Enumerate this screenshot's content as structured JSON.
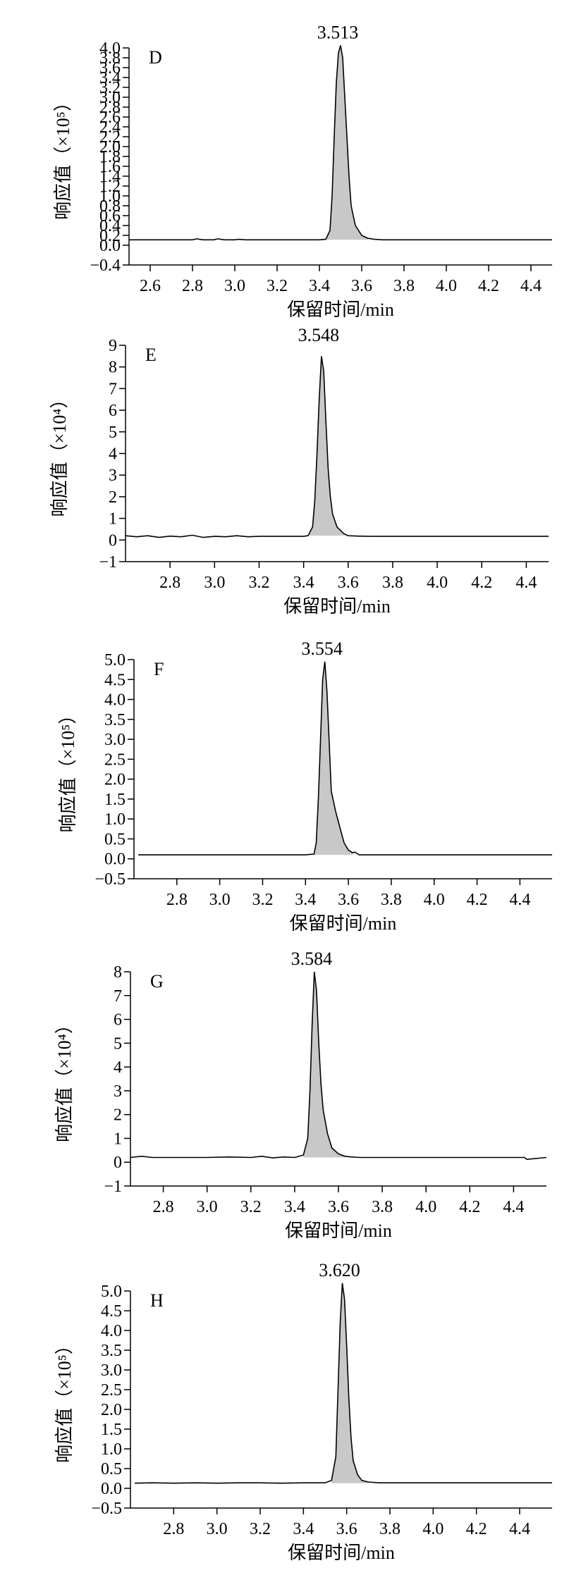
{
  "chart_data": [
    {
      "type": "line",
      "panel_label": "D",
      "peak_label": "3.513",
      "xlabel": "保留时间/min",
      "ylabel": "响应值（×10⁵）",
      "xlim": [
        2.5,
        4.5
      ],
      "ylim": [
        -0.4,
        4.0
      ],
      "xticks": [
        2.6,
        2.8,
        3.0,
        3.2,
        3.4,
        3.6,
        3.8,
        4.0,
        4.2,
        4.4
      ],
      "xtick_labels": [
        "2.6",
        "2.8",
        "3.0",
        "3.2",
        "3.4",
        "3.6",
        "3.8",
        "4.0",
        "4.2",
        "4.4"
      ],
      "yticks": [
        -0.4,
        0.0,
        0.2,
        0.4,
        0.6,
        0.8,
        1.0,
        1.2,
        1.4,
        1.6,
        1.8,
        2.0,
        2.2,
        2.4,
        2.6,
        2.8,
        3.0,
        3.2,
        3.4,
        3.6,
        3.8,
        4.0
      ],
      "ytick_labels": [
        "−0.4",
        "0.0",
        "0.2",
        "0.4",
        "0.6",
        "0.8",
        "1.0",
        "1.2",
        "1.4",
        "1.6",
        "1.8",
        "2.0",
        "2.2",
        "2.4",
        "2.6",
        "2.8",
        "3.0",
        "3.2",
        "3.4",
        "3.6",
        "3.8",
        "4.0"
      ],
      "series": [
        {
          "x": [
            2.5,
            2.6,
            2.7,
            2.8,
            2.82,
            2.85,
            2.9,
            2.92,
            2.95,
            3.0,
            3.02,
            3.05,
            3.1,
            3.2,
            3.3,
            3.4,
            3.43,
            3.45,
            3.46,
            3.47,
            3.48,
            3.49,
            3.5,
            3.51,
            3.52,
            3.53,
            3.54,
            3.55,
            3.57,
            3.6,
            3.63,
            3.66,
            3.7,
            3.8,
            4.0,
            4.2,
            4.4,
            4.5
          ],
          "y": [
            0.11,
            0.11,
            0.11,
            0.11,
            0.13,
            0.11,
            0.11,
            0.13,
            0.11,
            0.11,
            0.12,
            0.11,
            0.11,
            0.11,
            0.11,
            0.11,
            0.12,
            0.3,
            1.0,
            2.2,
            3.3,
            3.9,
            4.05,
            3.8,
            3.0,
            2.2,
            1.4,
            0.8,
            0.4,
            0.2,
            0.14,
            0.12,
            0.11,
            0.11,
            0.11,
            0.11,
            0.11,
            0.11
          ]
        }
      ]
    },
    {
      "type": "line",
      "panel_label": "E",
      "peak_label": "3.548",
      "xlabel": "保留时间/min",
      "ylabel": "响应值（×10⁴）",
      "xlim": [
        2.6,
        4.5
      ],
      "ylim": [
        -1,
        9
      ],
      "xticks": [
        2.8,
        3.0,
        3.2,
        3.4,
        3.6,
        3.8,
        4.0,
        4.2,
        4.4
      ],
      "xtick_labels": [
        "2.8",
        "3.0",
        "3.2",
        "3.4",
        "3.6",
        "3.8",
        "4.0",
        "4.2",
        "4.4"
      ],
      "yticks": [
        -1,
        0,
        1,
        2,
        3,
        4,
        5,
        6,
        7,
        8,
        9
      ],
      "ytick_labels": [
        "−1",
        "0",
        "1",
        "2",
        "3",
        "4",
        "5",
        "6",
        "7",
        "8",
        "9"
      ],
      "series": [
        {
          "x": [
            2.6,
            2.65,
            2.7,
            2.75,
            2.8,
            2.85,
            2.9,
            2.95,
            3.0,
            3.05,
            3.1,
            3.15,
            3.2,
            3.3,
            3.4,
            3.42,
            3.44,
            3.45,
            3.46,
            3.47,
            3.48,
            3.49,
            3.5,
            3.51,
            3.52,
            3.53,
            3.55,
            3.58,
            3.6,
            3.65,
            3.7,
            3.8,
            4.0,
            4.2,
            4.4,
            4.5
          ],
          "y": [
            0.2,
            0.15,
            0.2,
            0.12,
            0.18,
            0.15,
            0.22,
            0.12,
            0.17,
            0.15,
            0.2,
            0.15,
            0.17,
            0.17,
            0.17,
            0.2,
            0.6,
            1.8,
            4.0,
            6.5,
            8.5,
            7.8,
            5.5,
            3.3,
            2.0,
            1.2,
            0.6,
            0.3,
            0.2,
            0.18,
            0.17,
            0.17,
            0.17,
            0.17,
            0.17,
            0.17
          ]
        }
      ]
    },
    {
      "type": "line",
      "panel_label": "F",
      "peak_label": "3.554",
      "xlabel": "保留时间/min",
      "ylabel": "响应值（×10⁵）",
      "xlim": [
        2.6,
        4.55
      ],
      "ylim": [
        -0.5,
        5.0
      ],
      "xticks": [
        2.8,
        3.0,
        3.2,
        3.4,
        3.6,
        3.8,
        4.0,
        4.2,
        4.4
      ],
      "xtick_labels": [
        "2.8",
        "3.0",
        "3.2",
        "3.4",
        "3.6",
        "3.8",
        "4.0",
        "4.2",
        "4.4"
      ],
      "yticks": [
        -0.5,
        0.0,
        0.5,
        1.0,
        1.5,
        2.0,
        2.5,
        3.0,
        3.5,
        4.0,
        4.5,
        5.0
      ],
      "ytick_labels": [
        "−0.5",
        "0.0",
        "0.5",
        "1.0",
        "1.5",
        "2.0",
        "2.5",
        "3.0",
        "3.5",
        "4.0",
        "4.5",
        "5.0"
      ],
      "series": [
        {
          "x": [
            2.62,
            2.8,
            3.0,
            3.2,
            3.4,
            3.44,
            3.45,
            3.46,
            3.47,
            3.48,
            3.49,
            3.5,
            3.51,
            3.52,
            3.54,
            3.56,
            3.58,
            3.6,
            3.62,
            3.63,
            3.65,
            3.7,
            3.8,
            4.0,
            4.2,
            4.4,
            4.55
          ],
          "y": [
            0.1,
            0.1,
            0.1,
            0.1,
            0.1,
            0.12,
            0.4,
            1.5,
            3.0,
            4.5,
            4.95,
            4.2,
            3.0,
            1.7,
            1.2,
            0.8,
            0.4,
            0.22,
            0.15,
            0.17,
            0.1,
            0.1,
            0.1,
            0.1,
            0.1,
            0.1,
            0.1
          ]
        }
      ]
    },
    {
      "type": "line",
      "panel_label": "G",
      "peak_label": "3.584",
      "xlabel": "保留时间/min",
      "ylabel": "响应值（×10⁴）",
      "xlim": [
        2.65,
        4.55
      ],
      "ylim": [
        -1,
        8
      ],
      "xticks": [
        2.8,
        3.0,
        3.2,
        3.4,
        3.6,
        3.8,
        4.0,
        4.2,
        4.4
      ],
      "xtick_labels": [
        "2.8",
        "3.0",
        "3.2",
        "3.4",
        "3.6",
        "3.8",
        "4.0",
        "4.2",
        "4.4"
      ],
      "yticks": [
        -1,
        0,
        1,
        2,
        3,
        4,
        5,
        6,
        7,
        8
      ],
      "ytick_labels": [
        "−1",
        "0",
        "1",
        "2",
        "3",
        "4",
        "5",
        "6",
        "7",
        "8"
      ],
      "series": [
        {
          "x": [
            2.65,
            2.7,
            2.75,
            2.8,
            2.9,
            3.0,
            3.1,
            3.2,
            3.25,
            3.3,
            3.35,
            3.4,
            3.44,
            3.46,
            3.47,
            3.48,
            3.49,
            3.5,
            3.51,
            3.52,
            3.53,
            3.55,
            3.57,
            3.6,
            3.63,
            3.66,
            3.7,
            3.8,
            4.0,
            4.2,
            4.45,
            4.46,
            4.55
          ],
          "y": [
            0.2,
            0.25,
            0.2,
            0.2,
            0.2,
            0.2,
            0.22,
            0.2,
            0.25,
            0.18,
            0.22,
            0.2,
            0.3,
            1.0,
            3.0,
            5.8,
            8.0,
            7.2,
            5.0,
            3.3,
            2.2,
            1.2,
            0.6,
            0.35,
            0.25,
            0.22,
            0.2,
            0.2,
            0.2,
            0.2,
            0.2,
            0.12,
            0.2
          ]
        }
      ]
    },
    {
      "type": "line",
      "panel_label": "H",
      "peak_label": "3.620",
      "xlabel": "保留时间/min",
      "ylabel": "响应值（×10⁵）",
      "xlim": [
        2.6,
        4.55
      ],
      "ylim": [
        -0.5,
        5.0
      ],
      "xticks": [
        2.8,
        3.0,
        3.2,
        3.4,
        3.6,
        3.8,
        4.0,
        4.2,
        4.4
      ],
      "xtick_labels": [
        "2.8",
        "3.0",
        "3.2",
        "3.4",
        "3.6",
        "3.8",
        "4.0",
        "4.2",
        "4.4"
      ],
      "yticks": [
        -0.5,
        0.0,
        0.5,
        1.0,
        1.5,
        2.0,
        2.5,
        3.0,
        3.5,
        4.0,
        4.5,
        5.0
      ],
      "ytick_labels": [
        "−0.5",
        "0.0",
        "0.5",
        "1.0",
        "1.5",
        "2.0",
        "2.5",
        "3.0",
        "3.5",
        "4.0",
        "4.5",
        "5.0"
      ],
      "series": [
        {
          "x": [
            2.62,
            2.7,
            2.8,
            2.9,
            3.0,
            3.1,
            3.2,
            3.3,
            3.4,
            3.5,
            3.53,
            3.55,
            3.56,
            3.57,
            3.58,
            3.59,
            3.6,
            3.61,
            3.62,
            3.63,
            3.65,
            3.67,
            3.7,
            3.75,
            3.8,
            4.0,
            4.2,
            4.4,
            4.55
          ],
          "y": [
            0.13,
            0.14,
            0.13,
            0.14,
            0.13,
            0.14,
            0.14,
            0.13,
            0.14,
            0.14,
            0.2,
            0.8,
            2.5,
            4.2,
            5.2,
            4.8,
            3.6,
            2.3,
            1.3,
            0.7,
            0.35,
            0.2,
            0.16,
            0.14,
            0.14,
            0.14,
            0.14,
            0.14,
            0.14
          ]
        }
      ]
    }
  ]
}
